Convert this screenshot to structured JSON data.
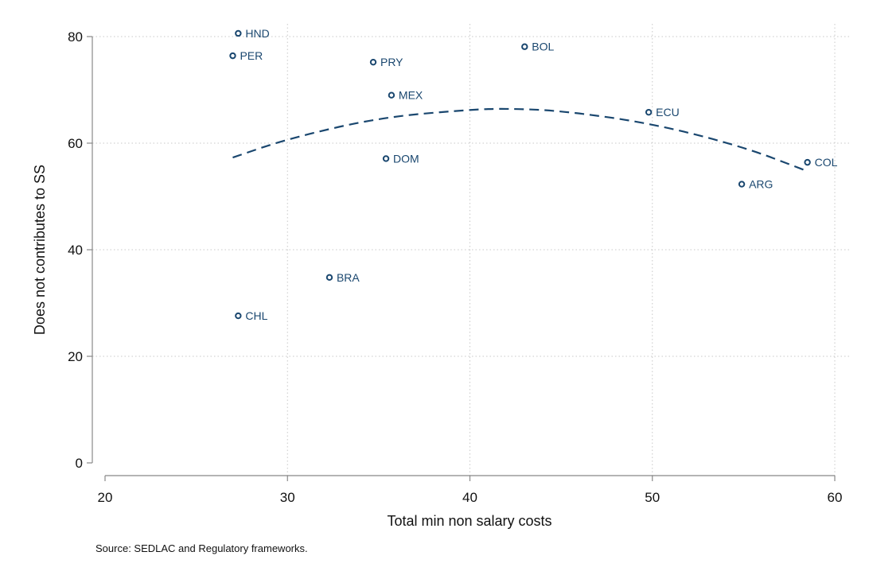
{
  "chart_data": {
    "type": "scatter",
    "title": "",
    "xlabel": "Total min non salary costs",
    "ylabel": "Does not contributes to SS",
    "xlim": [
      20,
      60
    ],
    "ylim": [
      0,
      80
    ],
    "xticks": [
      "20",
      "30",
      "40",
      "50",
      "60"
    ],
    "yticks": [
      "0",
      "20",
      "40",
      "60",
      "80"
    ],
    "grid": "dotted",
    "points": [
      {
        "label": "HND",
        "x": 27.3,
        "y": 80.6
      },
      {
        "label": "PER",
        "x": 27.0,
        "y": 76.4
      },
      {
        "label": "PRY",
        "x": 34.7,
        "y": 75.2
      },
      {
        "label": "BOL",
        "x": 43.0,
        "y": 78.1
      },
      {
        "label": "MEX",
        "x": 35.7,
        "y": 69.0
      },
      {
        "label": "ECU",
        "x": 49.8,
        "y": 65.8
      },
      {
        "label": "DOM",
        "x": 35.4,
        "y": 57.1
      },
      {
        "label": "COL",
        "x": 58.5,
        "y": 56.4
      },
      {
        "label": "ARG",
        "x": 54.9,
        "y": 52.3
      },
      {
        "label": "BRA",
        "x": 32.3,
        "y": 34.8
      },
      {
        "label": "CHL",
        "x": 27.3,
        "y": 27.6
      }
    ],
    "fit": {
      "type": "quadratic",
      "style": "dashed",
      "points": [
        {
          "x": 27.0,
          "y": 57.3
        },
        {
          "x": 30.0,
          "y": 60.8
        },
        {
          "x": 35.0,
          "y": 64.8
        },
        {
          "x": 40.0,
          "y": 66.3
        },
        {
          "x": 42.0,
          "y": 66.5
        },
        {
          "x": 45.0,
          "y": 66.1
        },
        {
          "x": 50.0,
          "y": 63.7
        },
        {
          "x": 55.0,
          "y": 59.3
        },
        {
          "x": 58.3,
          "y": 55.0
        }
      ]
    },
    "colors": {
      "marker": "#1a476f",
      "fit": "#1a476f",
      "grid": "#c8c8c8",
      "axis": "#888888"
    }
  },
  "note": "Source: SEDLAC and Regulatory frameworks."
}
